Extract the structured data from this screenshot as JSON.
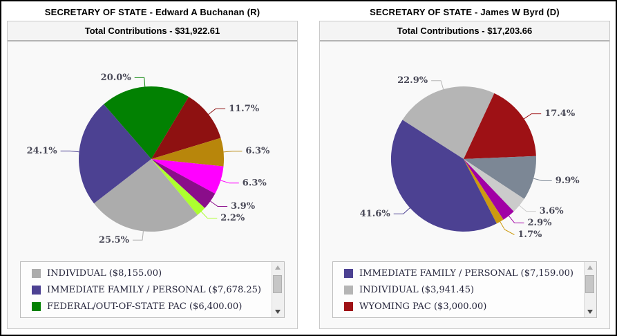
{
  "chart_data": [
    {
      "type": "pie",
      "title": "SECRETARY OF STATE - Edward A Buchanan (R)",
      "total_label": "Total Contributions - $31,922.61",
      "total_value": 31922.61,
      "start_angle_deg": -41,
      "legend_position": "bottom",
      "slices": [
        {
          "pct": 20.0,
          "pct_label": "20.0%",
          "color": "#028102",
          "category": "FEDERAL/OUT-OF-STATE PAC",
          "amount": 6400.0
        },
        {
          "pct": 11.7,
          "pct_label": "11.7%",
          "color": "#8E1111"
        },
        {
          "pct": 6.3,
          "pct_label": "6.3%",
          "color": "#B8860B"
        },
        {
          "pct": 6.3,
          "pct_label": "6.3%",
          "color": "#FF00FF"
        },
        {
          "pct": 3.9,
          "pct_label": "3.9%",
          "color": "#8A0D8A"
        },
        {
          "pct": 2.2,
          "pct_label": "2.2%",
          "color": "#ADFF2F"
        },
        {
          "pct": 25.5,
          "pct_label": "25.5%",
          "color": "#ACACAC",
          "category": "INDIVIDUAL",
          "amount": 8155.0
        },
        {
          "pct": 24.1,
          "pct_label": "24.1%",
          "color": "#4C4192",
          "category": "IMMEDIATE FAMILY / PERSONAL",
          "amount": 7678.25
        }
      ],
      "legend": {
        "scrollable": true,
        "visible_items": [
          {
            "label": "INDIVIDUAL ($8,155.00)",
            "color": "#ACACAC"
          },
          {
            "label": "IMMEDIATE FAMILY / PERSONAL ($7,678.25)",
            "color": "#4C4192"
          },
          {
            "label": "FEDERAL/OUT-OF-STATE PAC ($6,400.00)",
            "color": "#028102"
          }
        ]
      }
    },
    {
      "type": "pie",
      "title": "SECRETARY OF STATE - James W Byrd (D)",
      "total_label": "Total Contributions - $17,203.66",
      "total_value": 17203.66,
      "start_angle_deg": -57.4,
      "legend_position": "bottom",
      "slices": [
        {
          "pct": 22.9,
          "pct_label": "22.9%",
          "color": "#B5B5B5",
          "category": "INDIVIDUAL",
          "amount": 3941.45
        },
        {
          "pct": 17.4,
          "pct_label": "17.4%",
          "color": "#9E1115",
          "category": "WYOMING PAC",
          "amount": 3000.0
        },
        {
          "pct": 9.9,
          "pct_label": "9.9%",
          "color": "#7C8795"
        },
        {
          "pct": 3.6,
          "pct_label": "3.6%",
          "color": "#CBCBCB"
        },
        {
          "pct": 2.9,
          "pct_label": "2.9%",
          "color": "#A100A5"
        },
        {
          "pct": 1.7,
          "pct_label": "1.7%",
          "color": "#CC9A0F"
        },
        {
          "pct": 41.6,
          "pct_label": "41.6%",
          "color": "#4C4192",
          "category": "IMMEDIATE FAMILY / PERSONAL",
          "amount": 7159.0
        }
      ],
      "legend": {
        "scrollable": true,
        "visible_items": [
          {
            "label": "IMMEDIATE FAMILY / PERSONAL ($7,159.00)",
            "color": "#4C4192"
          },
          {
            "label": "INDIVIDUAL ($3,941.45)",
            "color": "#B5B5B5"
          },
          {
            "label": "WYOMING PAC ($3,000.00)",
            "color": "#9E1115"
          }
        ]
      }
    }
  ],
  "colors": {
    "label_text": "#4A4A58",
    "legend_text": "#26263C",
    "chart_bg": "#F9F9F9",
    "header_bg": "#F4F4F4"
  }
}
